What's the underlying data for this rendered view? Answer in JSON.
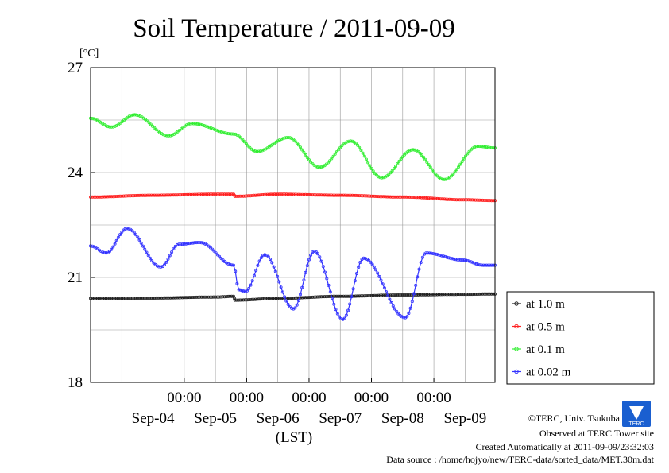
{
  "chart_data": {
    "type": "line",
    "title": "Soil Temperature / 2011-09-09",
    "ylabel": "[°C]",
    "xlabel": "(LST)",
    "ylim": [
      18,
      27
    ],
    "yticks": [
      18,
      21,
      24,
      27
    ],
    "x_domain": [
      "2011-09-03T12:00",
      "2011-09-09T23:30"
    ],
    "xticks_time": [
      "00:00",
      "00:00",
      "00:00",
      "00:00",
      "00:00"
    ],
    "xticks_date": [
      "Sep-04",
      "Sep-05",
      "Sep-06",
      "Sep-07",
      "Sep-08",
      "Sep-09"
    ],
    "grid": true,
    "legend_position": "right",
    "colors": {
      "at 1.0 m": "#222222",
      "at 0.5 m": "#ff2020",
      "at 0.1 m": "#33ee33",
      "at 0.02 m": "#3333ff"
    },
    "series": [
      {
        "name": "at 1.0 m",
        "color": "#222222",
        "x": [
          "2011-09-03T12:00",
          "2011-09-04T12:00",
          "2011-09-05T12:00",
          "2011-09-05T19:00",
          "2011-09-05T19:30",
          "2011-09-06T12:00",
          "2011-09-07T12:00",
          "2011-09-08T12:00",
          "2011-09-09T12:00",
          "2011-09-09T23:30"
        ],
        "values": [
          20.4,
          20.41,
          20.44,
          20.46,
          20.35,
          20.4,
          20.46,
          20.5,
          20.52,
          20.53
        ]
      },
      {
        "name": "at 0.5 m",
        "color": "#ff2020",
        "x": [
          "2011-09-03T12:00",
          "2011-09-04T12:00",
          "2011-09-05T12:00",
          "2011-09-05T19:00",
          "2011-09-05T19:30",
          "2011-09-06T12:00",
          "2011-09-07T12:00",
          "2011-09-08T12:00",
          "2011-09-09T12:00",
          "2011-09-09T23:30"
        ],
        "values": [
          23.3,
          23.35,
          23.38,
          23.38,
          23.32,
          23.38,
          23.35,
          23.3,
          23.22,
          23.2
        ]
      },
      {
        "name": "at 0.1 m",
        "color": "#33ee33",
        "x": [
          "2011-09-03T12:00",
          "2011-09-03T20:00",
          "2011-09-04T05:00",
          "2011-09-04T18:00",
          "2011-09-05T03:00",
          "2011-09-05T19:00",
          "2011-09-06T04:00",
          "2011-09-06T16:00",
          "2011-09-07T04:00",
          "2011-09-07T16:00",
          "2011-09-08T04:00",
          "2011-09-08T16:00",
          "2011-09-09T04:00",
          "2011-09-09T17:00",
          "2011-09-09T23:30"
        ],
        "values": [
          25.55,
          25.3,
          25.65,
          25.05,
          25.4,
          25.1,
          24.6,
          25.0,
          24.15,
          24.9,
          23.85,
          24.65,
          23.8,
          24.75,
          24.7
        ]
      },
      {
        "name": "at 0.02 m",
        "color": "#3333ff",
        "x": [
          "2011-09-03T12:00",
          "2011-09-03T18:00",
          "2011-09-04T02:00",
          "2011-09-04T15:00",
          "2011-09-04T22:00",
          "2011-09-05T06:00",
          "2011-09-05T19:00",
          "2011-09-05T21:00",
          "2011-09-05T23:30",
          "2011-09-06T07:00",
          "2011-09-06T18:00",
          "2011-09-07T02:00",
          "2011-09-07T13:00",
          "2011-09-07T21:00",
          "2011-09-08T13:00",
          "2011-09-08T21:00",
          "2011-09-09T11:00",
          "2011-09-09T19:00",
          "2011-09-09T23:30"
        ],
        "values": [
          21.9,
          21.7,
          22.4,
          21.3,
          21.95,
          22.0,
          21.35,
          20.65,
          20.6,
          21.65,
          20.1,
          21.75,
          19.8,
          21.55,
          19.85,
          21.7,
          21.5,
          21.35,
          21.35
        ]
      }
    ]
  },
  "footer": {
    "credit": "©TERC, Univ. Tsukuba",
    "observed": "Observed at TERC Tower site",
    "created": "Created Automatically at 2011-09-09/23:32:03",
    "source": "Data source : /home/hojyo/new/TERC-data/sorted_data/MET.30m.dat",
    "logo_text": "TERC"
  }
}
